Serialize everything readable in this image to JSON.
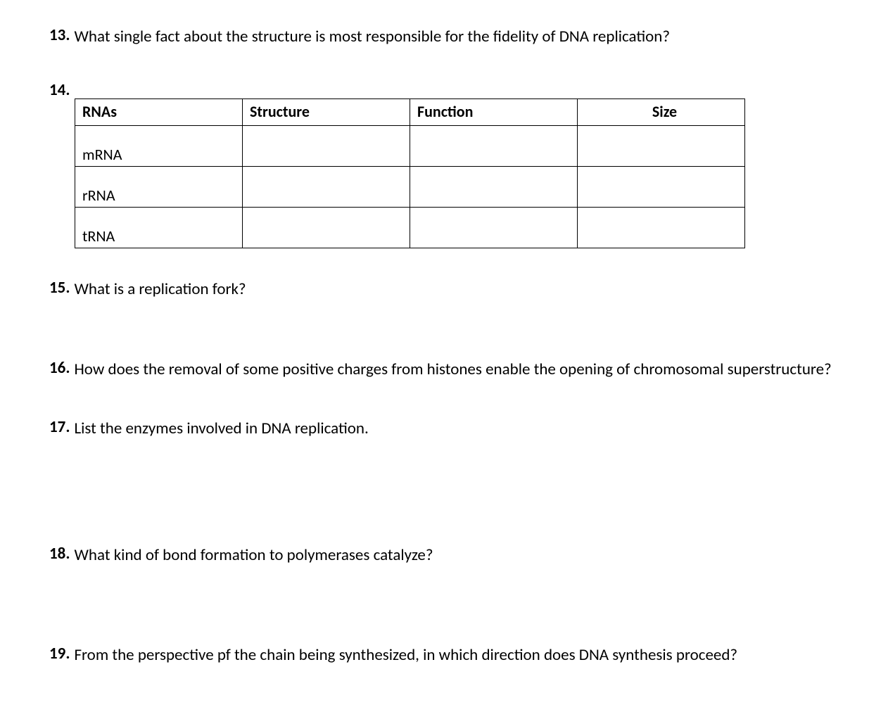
{
  "questions": {
    "q13": {
      "number": "13.",
      "text": "What single fact about the structure is most responsible for the fidelity of DNA replication?"
    },
    "q14": {
      "number": "14."
    },
    "q15": {
      "number": "15.",
      "text": "What is a replication fork?"
    },
    "q16": {
      "number": "16.",
      "text": "How does the removal of some positive charges from histones enable the opening of chromosomal superstructure?"
    },
    "q17": {
      "number": "17.",
      "text": "List the enzymes involved in DNA replication."
    },
    "q18": {
      "number": "18.",
      "text": "What kind of bond formation to polymerases catalyze?"
    },
    "q19": {
      "number": "19.",
      "text": "From the perspective pf the chain being synthesized, in which direction does DNA synthesis proceed?"
    }
  },
  "table": {
    "headers": {
      "col1": "RNAs",
      "col2": "Structure",
      "col3": "Function",
      "col4": "Size"
    },
    "rows": [
      {
        "label": "mRNA",
        "structure": "",
        "function": "",
        "size": ""
      },
      {
        "label": "rRNA",
        "structure": "",
        "function": "",
        "size": ""
      },
      {
        "label": "tRNA",
        "structure": "",
        "function": "",
        "size": ""
      }
    ]
  },
  "colors": {
    "background": "#ffffff",
    "text": "#000000",
    "border": "#000000"
  },
  "typography": {
    "font_family": "Calibri",
    "number_fontsize": 23,
    "text_fontsize": 23,
    "table_fontsize": 22
  }
}
